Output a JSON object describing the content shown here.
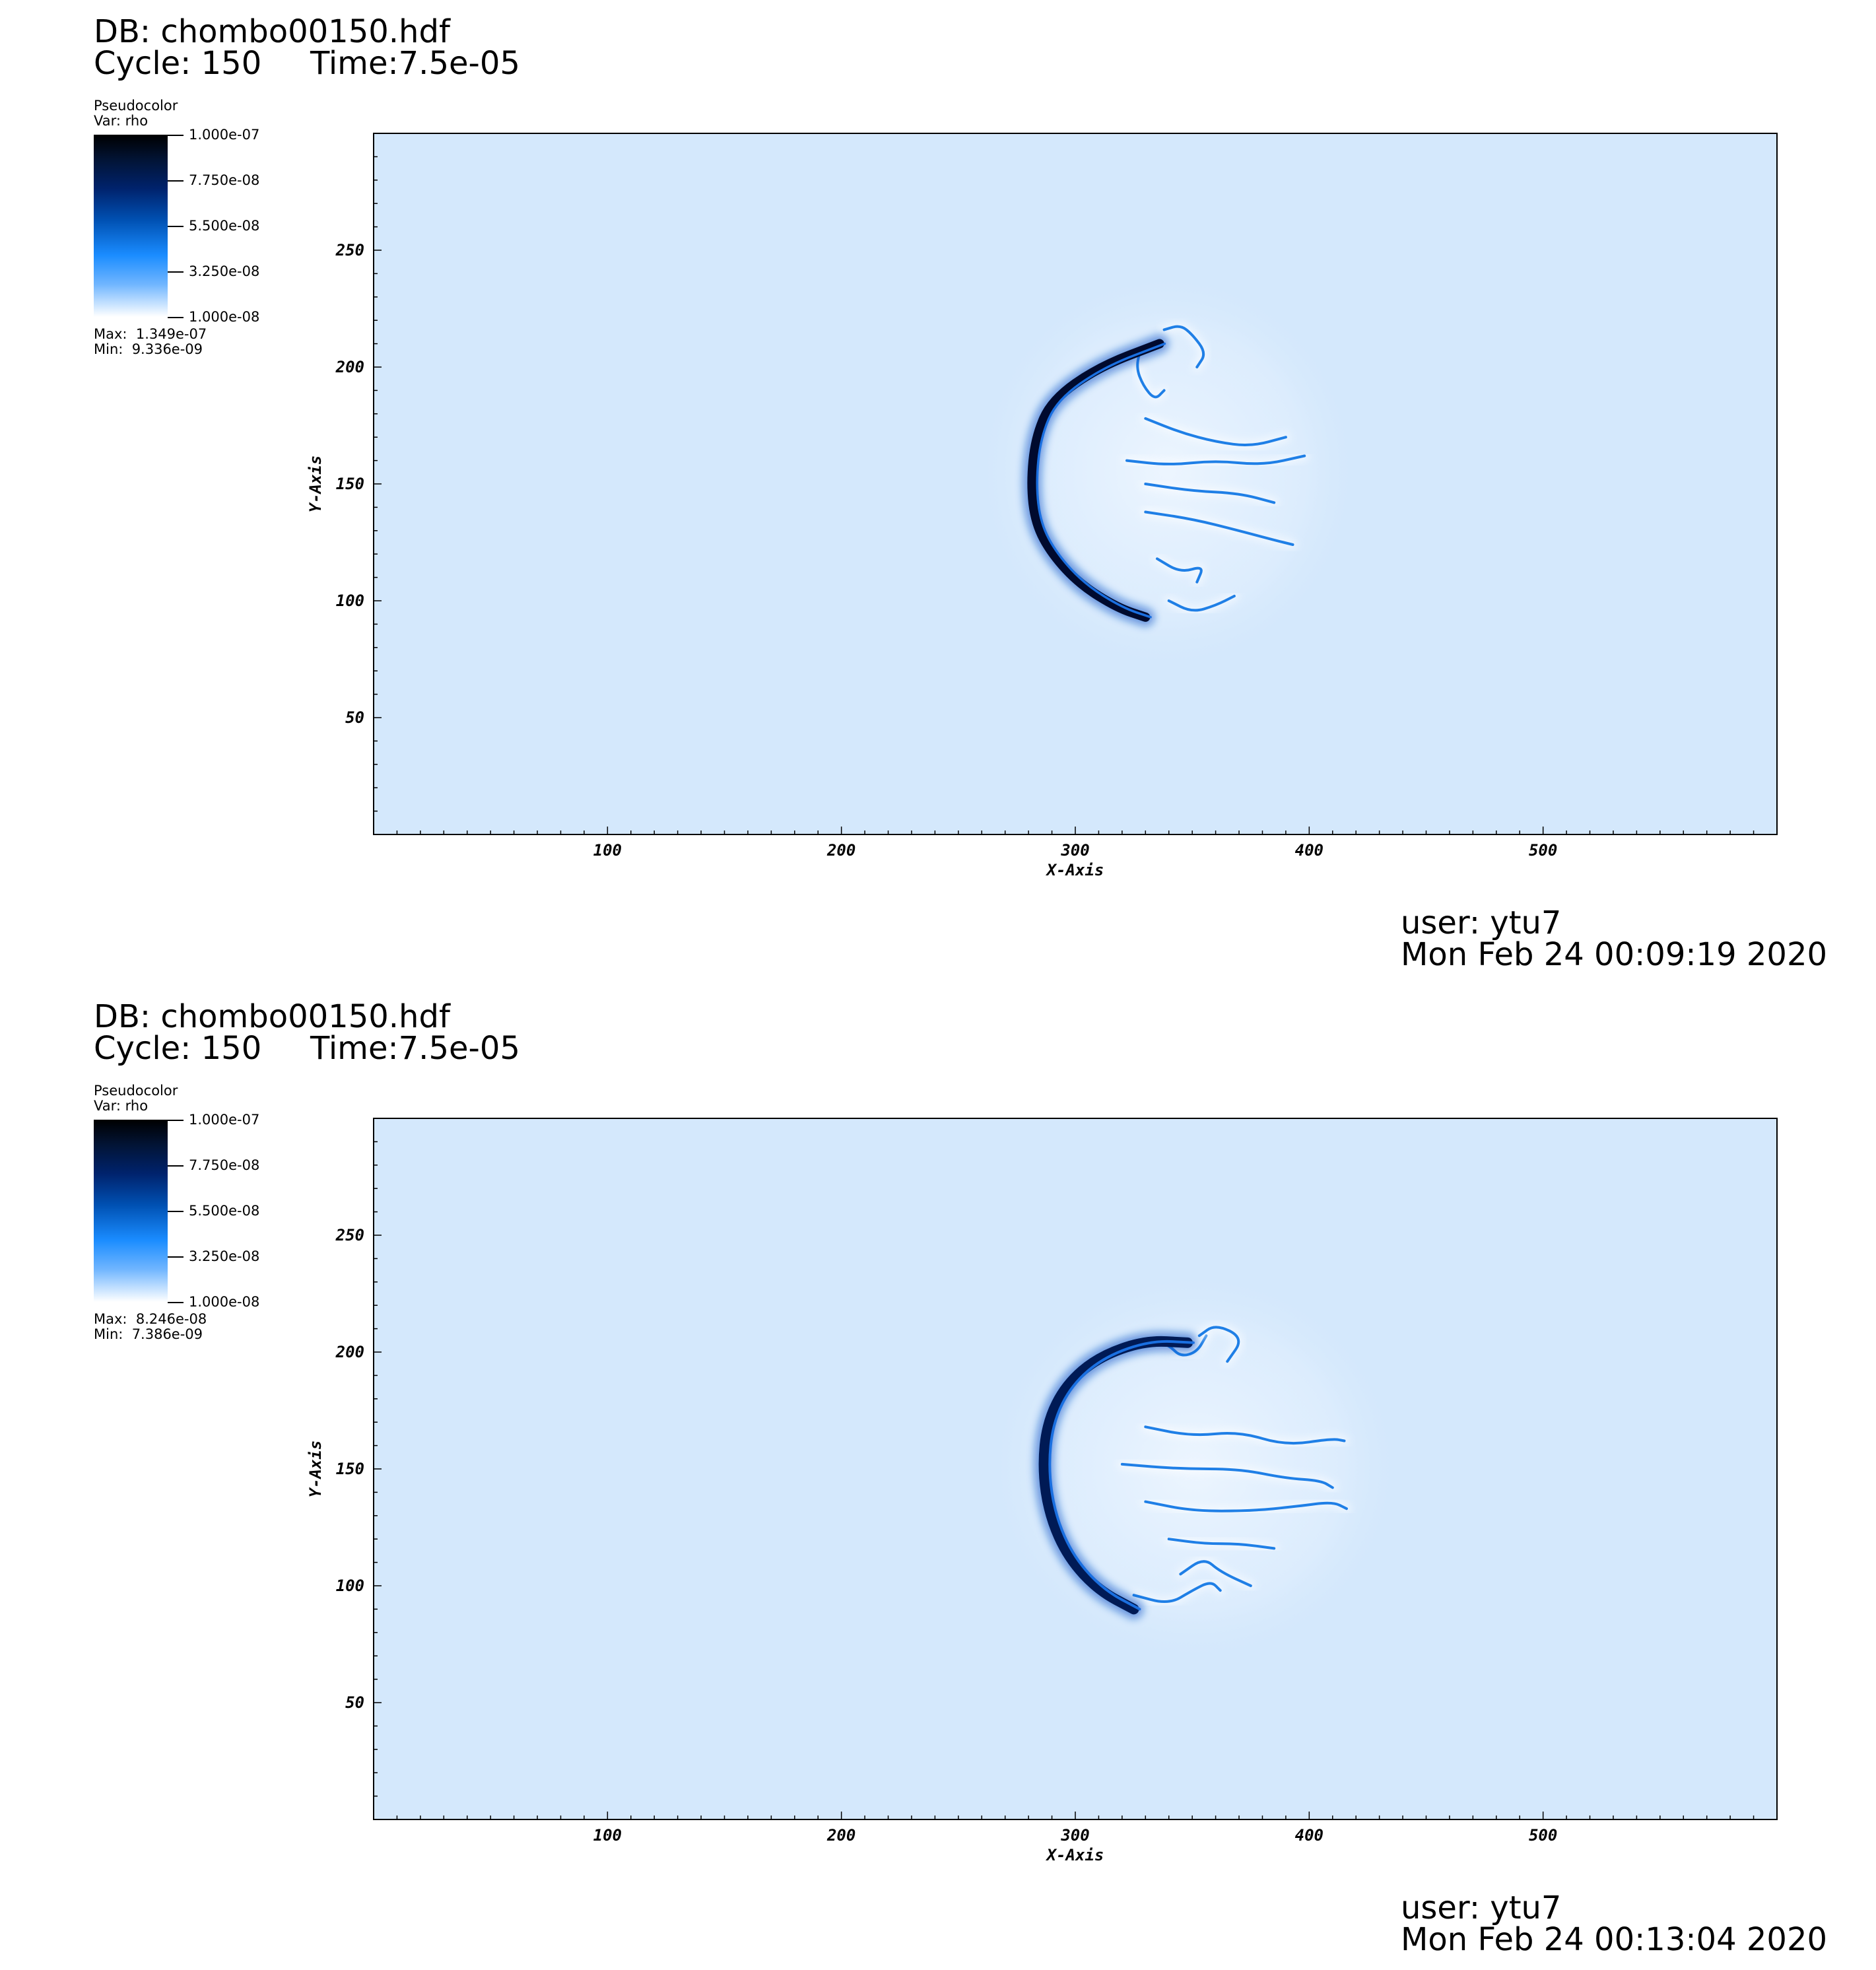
{
  "panels": [
    {
      "db_label": "DB: chombo00150.hdf",
      "cycle_label": "Cycle: 150",
      "time_label": "Time:7.5e-05",
      "legend": {
        "plot_type": "Pseudocolor",
        "var_label": "Var: rho",
        "ticks": [
          "1.000e-07",
          "7.750e-08",
          "5.500e-08",
          "3.250e-08",
          "1.000e-08"
        ],
        "max_label": "Max:  1.349e-07",
        "min_label": "Min:  9.336e-09",
        "colormap": [
          "#ffffff",
          "#6fb5ff",
          "#1a8cff",
          "#0051b3",
          "#00236e",
          "#021436",
          "#000000"
        ]
      },
      "user_label": "user: ytu7",
      "date_label": "Mon Feb 24 00:09:19 2020"
    },
    {
      "db_label": "DB: chombo00150.hdf",
      "cycle_label": "Cycle: 150",
      "time_label": "Time:7.5e-05",
      "legend": {
        "plot_type": "Pseudocolor",
        "var_label": "Var: rho",
        "ticks": [
          "1.000e-07",
          "7.750e-08",
          "5.500e-08",
          "3.250e-08",
          "1.000e-08"
        ],
        "max_label": "Max:  8.246e-08",
        "min_label": "Min:  7.386e-09",
        "colormap": [
          "#ffffff",
          "#6fb5ff",
          "#1a8cff",
          "#0051b3",
          "#00236e",
          "#021436",
          "#000000"
        ]
      },
      "user_label": "user: ytu7",
      "date_label": "Mon Feb 24 00:13:04 2020"
    }
  ],
  "chart_data": [
    {
      "type": "heatmap",
      "variable": "rho",
      "xlabel": "X-Axis",
      "ylabel": "Y-Axis",
      "xlim": [
        0,
        600
      ],
      "ylim": [
        0,
        300
      ],
      "xticks": [
        100,
        200,
        300,
        400,
        500
      ],
      "yticks": [
        50,
        100,
        150,
        200,
        250
      ],
      "colorbar_range": [
        1e-08,
        1e-07
      ],
      "max": 1.349e-07,
      "min": 9.336e-09,
      "background_color": "#d4e8fc",
      "grid": false,
      "features": {
        "front_outline": [
          [
            336,
            210
          ],
          [
            310,
            200
          ],
          [
            290,
            186
          ],
          [
            283,
            170
          ],
          [
            281,
            150
          ],
          [
            283,
            133
          ],
          [
            290,
            120
          ],
          [
            302,
            107
          ],
          [
            318,
            97
          ],
          [
            330,
            93
          ]
        ],
        "front_width": 4.0,
        "front_color": "#000a2e",
        "filaments": [
          [
            [
              328,
              208
            ],
            [
              326,
              200
            ],
            [
              329,
              192
            ],
            [
              334,
              186
            ],
            [
              338,
              190
            ]
          ],
          [
            [
              338,
              216
            ],
            [
              345,
              218
            ],
            [
              350,
              214
            ],
            [
              356,
              206
            ],
            [
              352,
              200
            ]
          ],
          [
            [
              330,
              178
            ],
            [
              345,
              172
            ],
            [
              360,
              168
            ],
            [
              375,
              166
            ],
            [
              390,
              170
            ]
          ],
          [
            [
              322,
              160
            ],
            [
              340,
              158
            ],
            [
              360,
              160
            ],
            [
              380,
              158
            ],
            [
              398,
              162
            ]
          ],
          [
            [
              330,
              150
            ],
            [
              350,
              147
            ],
            [
              370,
              146
            ],
            [
              385,
              142
            ]
          ],
          [
            [
              330,
              138
            ],
            [
              350,
              135
            ],
            [
              370,
              130
            ],
            [
              385,
              126
            ],
            [
              393,
              124
            ]
          ],
          [
            [
              335,
              118
            ],
            [
              345,
              112
            ],
            [
              355,
              115
            ],
            [
              352,
              108
            ]
          ],
          [
            [
              340,
              100
            ],
            [
              350,
              95
            ],
            [
              360,
              98
            ],
            [
              368,
              102
            ]
          ]
        ]
      }
    },
    {
      "type": "heatmap",
      "variable": "rho",
      "xlabel": "X-Axis",
      "ylabel": "Y-Axis",
      "xlim": [
        0,
        600
      ],
      "ylim": [
        0,
        300
      ],
      "xticks": [
        100,
        200,
        300,
        400,
        500
      ],
      "yticks": [
        50,
        100,
        150,
        200,
        250
      ],
      "colorbar_range": [
        1e-08,
        1e-07
      ],
      "max": 8.246e-08,
      "min": 7.386e-09,
      "background_color": "#d4e8fc",
      "grid": false,
      "features": {
        "front_outline": [
          [
            348,
            204
          ],
          [
            330,
            205
          ],
          [
            310,
            198
          ],
          [
            296,
            186
          ],
          [
            288,
            170
          ],
          [
            286,
            150
          ],
          [
            289,
            130
          ],
          [
            297,
            112
          ],
          [
            310,
            98
          ],
          [
            325,
            90
          ]
        ],
        "front_width": 4.5,
        "front_color": "#001a55",
        "filaments": [
          [
            [
              332,
              206
            ],
            [
              340,
              203
            ],
            [
              345,
              198
            ],
            [
              352,
              200
            ],
            [
              356,
              207
            ]
          ],
          [
            [
              353,
              207
            ],
            [
              360,
              212
            ],
            [
              372,
              206
            ],
            [
              365,
              196
            ]
          ],
          [
            [
              330,
              168
            ],
            [
              350,
              164
            ],
            [
              370,
              166
            ],
            [
              390,
              160
            ],
            [
              410,
              163
            ],
            [
              415,
              162
            ]
          ],
          [
            [
              320,
              152
            ],
            [
              345,
              150
            ],
            [
              370,
              150
            ],
            [
              390,
              146
            ],
            [
              405,
              145
            ],
            [
              410,
              142
            ]
          ],
          [
            [
              330,
              136
            ],
            [
              350,
              132
            ],
            [
              375,
              132
            ],
            [
              395,
              134
            ],
            [
              410,
              136
            ],
            [
              416,
              133
            ]
          ],
          [
            [
              340,
              120
            ],
            [
              355,
              118
            ],
            [
              370,
              118
            ],
            [
              385,
              116
            ]
          ],
          [
            [
              325,
              96
            ],
            [
              340,
              92
            ],
            [
              350,
              98
            ],
            [
              358,
              102
            ],
            [
              362,
              98
            ]
          ],
          [
            [
              345,
              105
            ],
            [
              355,
              112
            ],
            [
              362,
              106
            ],
            [
              375,
              100
            ]
          ]
        ]
      }
    }
  ]
}
